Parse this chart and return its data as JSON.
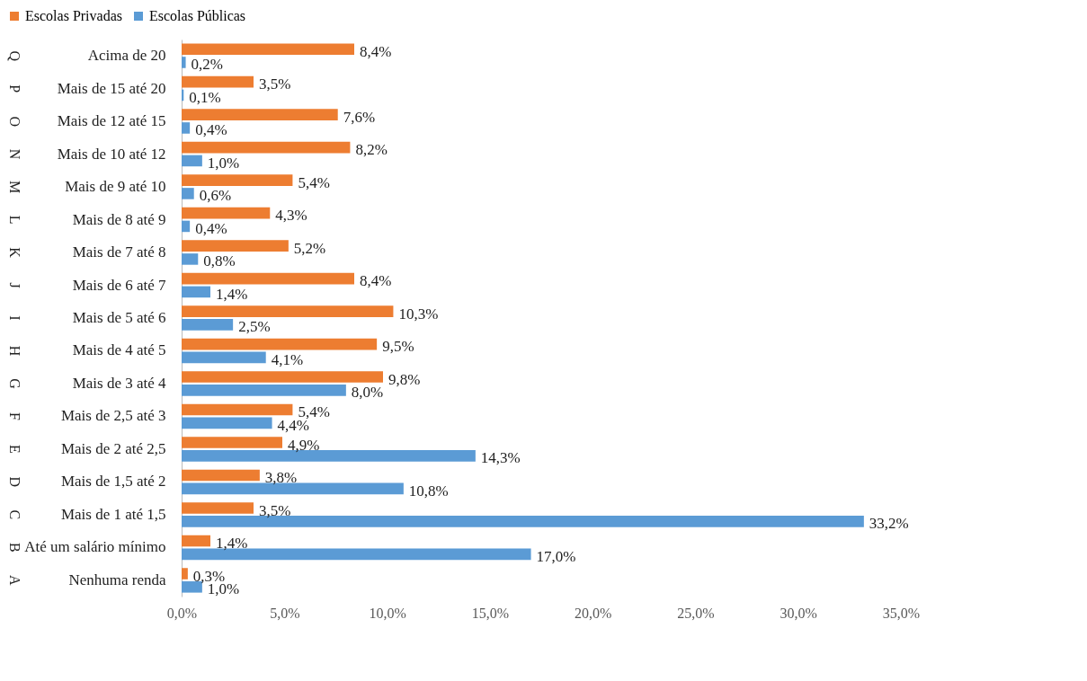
{
  "chart_data": {
    "type": "bar",
    "orientation": "horizontal",
    "legend": "top",
    "categories": [
      "Acima de 20",
      "Mais de 15 até 20",
      "Mais de 12 até 15",
      "Mais de 10 até 12",
      "Mais de 9 até 10",
      "Mais de 8 até 9",
      "Mais de 7 até 8",
      "Mais de 6 até 7",
      "Mais de 5 até 6",
      "Mais de 4 até 5",
      "Mais de 3 até 4",
      "Mais de 2,5 até 3",
      "Mais de 2 até 2,5",
      "Mais de 1,5 até 2",
      "Mais de 1 até 1,5",
      "Até um salário mínimo",
      "Nenhuma renda"
    ],
    "series": [
      {
        "name": "Escolas Privadas",
        "color": "#ed7d31",
        "values": [
          8.4,
          3.5,
          7.6,
          8.2,
          5.4,
          4.3,
          5.2,
          8.4,
          10.3,
          9.5,
          9.8,
          5.4,
          4.9,
          3.8,
          3.5,
          1.4,
          0.3
        ],
        "value_labels": [
          "8,4%",
          "3,5%",
          "7,6%",
          "8,2%",
          "5,4%",
          "4,3%",
          "5,2%",
          "8,4%",
          "10,3%",
          "9,5%",
          "9,8%",
          "5,4%",
          "4,9%",
          "3,8%",
          "3,5%",
          "1,4%",
          "0,3%"
        ]
      },
      {
        "name": "Escolas Públicas",
        "color": "#5b9bd5",
        "values": [
          0.2,
          0.1,
          0.4,
          1.0,
          0.6,
          0.4,
          0.8,
          1.4,
          2.5,
          4.1,
          8.0,
          4.4,
          14.3,
          10.8,
          33.2,
          17.0,
          1.0
        ],
        "value_labels": [
          "0,2%",
          "0,1%",
          "0,4%",
          "1,0%",
          "0,6%",
          "0,4%",
          "0,8%",
          "1,4%",
          "2,5%",
          "4,1%",
          "8,0%",
          "4,4%",
          "14,3%",
          "10,8%",
          "33,2%",
          "17,0%",
          "1,0%"
        ]
      }
    ],
    "xlim": [
      0,
      35
    ],
    "xticks": [
      {
        "value": 0,
        "label": "0,0%"
      },
      {
        "value": 5,
        "label": "5,0%"
      },
      {
        "value": 10,
        "label": "10,0%"
      },
      {
        "value": 15,
        "label": "15,0%"
      },
      {
        "value": 20,
        "label": "20,0%"
      },
      {
        "value": 25,
        "label": "25,0%"
      },
      {
        "value": 30,
        "label": "30,0%"
      },
      {
        "value": 35,
        "label": "35,0%"
      }
    ],
    "annotations": [
      "Q",
      "P",
      "O",
      "N",
      "M",
      "L",
      "K",
      "J",
      "I",
      "H",
      "G",
      "F",
      "E",
      "D",
      "C",
      "B",
      "A"
    ]
  }
}
